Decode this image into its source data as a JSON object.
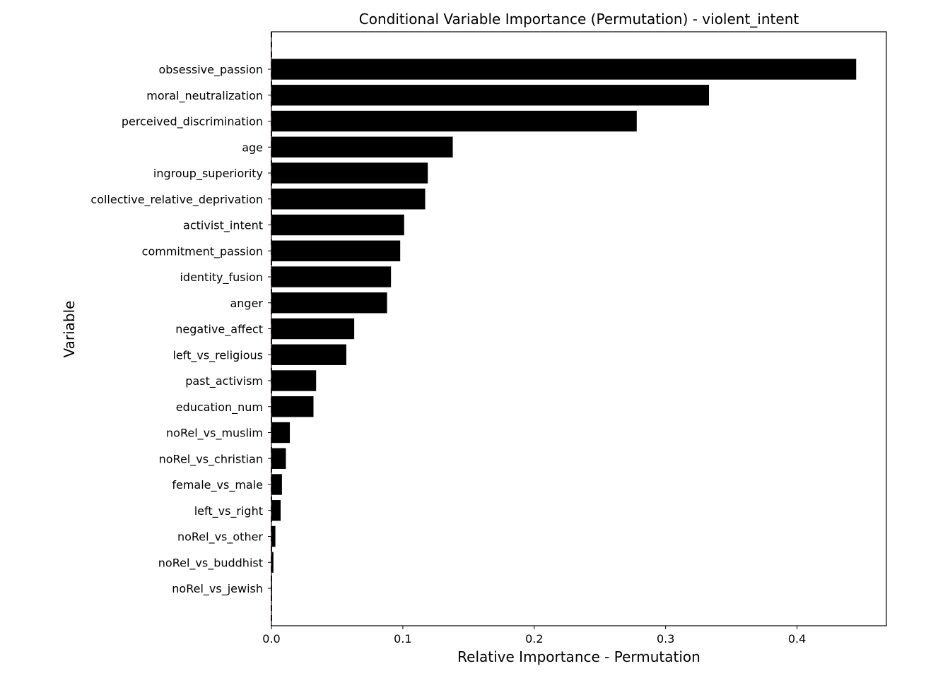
{
  "chart_data": {
    "type": "bar",
    "orientation": "horizontal",
    "title": "Conditional Variable Importance (Permutation) - violent_intent",
    "xlabel": "Relative Importance - Permutation",
    "ylabel": "Variable",
    "xlim": [
      0,
      0.468
    ],
    "xticks": [
      0.0,
      0.1,
      0.2,
      0.3,
      0.4
    ],
    "xtick_labels": [
      "0.0",
      "0.1",
      "0.2",
      "0.3",
      "0.4"
    ],
    "grid": false,
    "legend": "none",
    "bar_color": "#000000",
    "reference_line_color": "#8b0000",
    "reference_line_x": 0,
    "categories": [
      "obsessive_passion",
      "moral_neutralization",
      "perceived_discrimination",
      "age",
      "ingroup_superiority",
      "collective_relative_deprivation",
      "activist_intent",
      "commitment_passion",
      "identity_fusion",
      "anger",
      "negative_affect",
      "left_vs_religious",
      "past_activism",
      "education_num",
      "noRel_vs_muslim",
      "noRel_vs_christian",
      "female_vs_male",
      "left_vs_right",
      "noRel_vs_other",
      "noRel_vs_buddhist",
      "noRel_vs_jewish"
    ],
    "values": [
      0.445,
      0.333,
      0.278,
      0.138,
      0.119,
      0.117,
      0.101,
      0.098,
      0.091,
      0.088,
      0.063,
      0.057,
      0.034,
      0.032,
      0.014,
      0.011,
      0.008,
      0.007,
      0.003,
      0.0015,
      0.0005
    ]
  }
}
